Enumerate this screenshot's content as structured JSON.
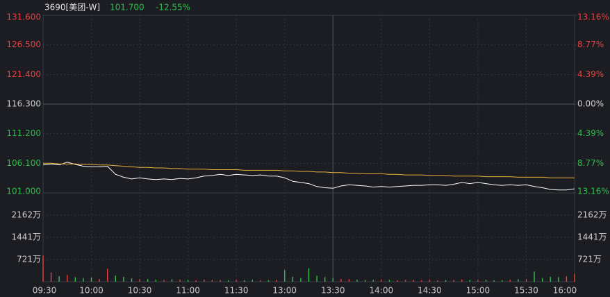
{
  "chart_data": [
    {
      "type": "line",
      "title": "3690[美团-W]",
      "price_label": "101.700",
      "change_label": "-12.55%",
      "categories": [
        "09:30",
        null,
        null,
        null,
        null,
        null,
        "10:00",
        null,
        null,
        null,
        null,
        null,
        "10:30",
        null,
        null,
        null,
        null,
        null,
        "11:00",
        null,
        null,
        null,
        null,
        null,
        "11:30",
        null,
        null,
        null,
        null,
        null,
        "13:00",
        null,
        null,
        null,
        null,
        null,
        "13:30",
        null,
        null,
        null,
        null,
        null,
        "14:00",
        null,
        null,
        null,
        null,
        null,
        "14:30",
        null,
        null,
        null,
        null,
        null,
        "15:00",
        null,
        null,
        null,
        null,
        null,
        "15:30",
        null,
        null,
        null,
        null,
        null,
        "16:00"
      ],
      "series": [
        {
          "color": "#ffffff",
          "values": [
            105.8,
            106.0,
            105.8,
            106.3,
            105.9,
            105.6,
            105.5,
            105.5,
            105.6,
            104.2,
            103.7,
            103.4,
            103.6,
            103.4,
            103.3,
            103.4,
            103.3,
            103.5,
            103.4,
            103.6,
            103.9,
            104.0,
            104.2,
            104.0,
            104.2,
            104.1,
            104.0,
            104.1,
            103.9,
            103.9,
            103.6,
            103.0,
            102.8,
            102.6,
            102.1,
            101.9,
            101.8,
            102.2,
            102.4,
            102.3,
            102.2,
            102.0,
            102.1,
            102.0,
            102.1,
            102.2,
            102.3,
            102.3,
            102.4,
            102.4,
            102.3,
            102.5,
            102.8,
            102.6,
            102.8,
            102.6,
            102.4,
            102.3,
            102.4,
            102.3,
            102.4,
            102.1,
            101.9,
            101.6,
            101.5,
            101.5,
            101.7
          ]
        },
        {
          "color": "#e8b33c",
          "values": [
            106.1,
            106.1,
            106.0,
            106.0,
            106.0,
            105.9,
            105.9,
            105.8,
            105.8,
            105.7,
            105.6,
            105.5,
            105.4,
            105.4,
            105.3,
            105.3,
            105.2,
            105.2,
            105.1,
            105.1,
            105.1,
            105.0,
            105.0,
            105.0,
            105.0,
            104.9,
            104.9,
            104.9,
            104.9,
            104.9,
            104.8,
            104.8,
            104.7,
            104.7,
            104.6,
            104.6,
            104.5,
            104.5,
            104.4,
            104.4,
            104.3,
            104.3,
            104.3,
            104.2,
            104.2,
            104.1,
            104.1,
            104.1,
            104.0,
            104.0,
            104.0,
            103.9,
            103.9,
            103.9,
            103.9,
            103.8,
            103.8,
            103.8,
            103.8,
            103.7,
            103.7,
            103.7,
            103.7,
            103.6,
            103.6,
            103.6,
            103.6
          ]
        }
      ],
      "ylim": [
        101.0,
        131.6
      ],
      "yticks": [
        {
          "value": 131.6,
          "label": "131.600"
        },
        {
          "value": 126.5,
          "label": "126.500"
        },
        {
          "value": 121.4,
          "label": "121.400"
        },
        {
          "value": 116.3,
          "label": "116.300"
        },
        {
          "value": 111.2,
          "label": "111.200"
        },
        {
          "value": 106.1,
          "label": "106.100"
        },
        {
          "value": 101.0,
          "label": "101.000"
        }
      ],
      "y2lim": [
        -13.16,
        13.16
      ],
      "y2ticks": [
        {
          "value": 13.16,
          "label": "13.16%"
        },
        {
          "value": 8.77,
          "label": "8.77%"
        },
        {
          "value": 4.39,
          "label": "4.39%"
        },
        {
          "value": 0,
          "label": "0.00%"
        },
        {
          "value": -4.39,
          "label": "4.39%"
        },
        {
          "value": -8.77,
          "label": "8.77%"
        },
        {
          "value": -13.16,
          "label": "13.16%"
        }
      ],
      "up_color": "#e8413f",
      "down_color": "#2fbf4a",
      "grid": true
    },
    {
      "type": "bar",
      "values": [
        850,
        300,
        180,
        220,
        150,
        120,
        140,
        90,
        420,
        200,
        160,
        110,
        90,
        80,
        70,
        60,
        80,
        70,
        60,
        50,
        70,
        60,
        60,
        50,
        60,
        50,
        60,
        50,
        50,
        60,
        380,
        160,
        120,
        440,
        200,
        150,
        120,
        90,
        80,
        70,
        60,
        60,
        70,
        60,
        50,
        60,
        60,
        50,
        60,
        50,
        50,
        60,
        70,
        60,
        60,
        70,
        50,
        50,
        60,
        80,
        90,
        330,
        120,
        160,
        150,
        180,
        260
      ],
      "ylim": [
        0,
        2883
      ],
      "yticks": [
        {
          "value": 2162,
          "label": "2162万"
        },
        {
          "value": 1441,
          "label": "1441万"
        },
        {
          "value": 721,
          "label": "721万"
        }
      ]
    }
  ]
}
